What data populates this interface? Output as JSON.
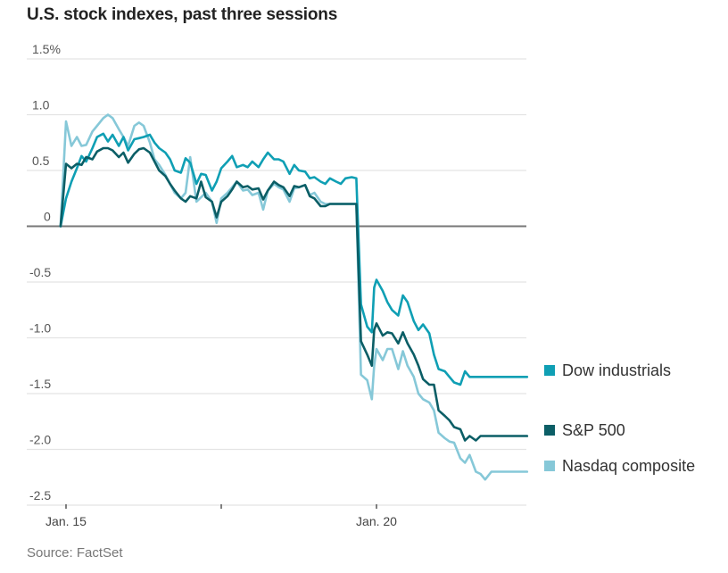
{
  "chart_data": {
    "type": "line",
    "title": "U.S. stock indexes, past three sessions",
    "xlabel": "",
    "ylabel": "",
    "y_unit": "%",
    "ylim": [
      -2.5,
      1.5
    ],
    "yticks": [
      1.5,
      1.0,
      0.5,
      0,
      -0.5,
      -1.0,
      -1.5,
      -2.0,
      -2.5
    ],
    "ytick_labels": [
      "1.5%",
      "1.0",
      "0.5",
      "0",
      "-0.5",
      "-1.0",
      "-1.5",
      "-2.0",
      "-2.5"
    ],
    "x_unit": "sessions since Jan. 15 open",
    "xlim": [
      -0.035,
      2.97
    ],
    "xticks": [
      0,
      1,
      2
    ],
    "xtick_labels": [
      "Jan. 15",
      "",
      "Jan. 20"
    ],
    "grid": true,
    "legend_position": "right",
    "series": [
      {
        "name": "Dow industrials",
        "color": "#0f9fb4",
        "x": [
          -0.035,
          0,
          0.035,
          0.07,
          0.1,
          0.13,
          0.17,
          0.2,
          0.24,
          0.27,
          0.3,
          0.34,
          0.37,
          0.4,
          0.44,
          0.47,
          0.5,
          0.54,
          0.57,
          0.6,
          0.64,
          0.67,
          0.7,
          0.74,
          0.77,
          0.8,
          0.84,
          0.87,
          0.9,
          0.94,
          0.97,
          1.0,
          1.04,
          1.07,
          1.1,
          1.14,
          1.17,
          1.2,
          1.24,
          1.27,
          1.3,
          1.34,
          1.37,
          1.4,
          1.44,
          1.47,
          1.5,
          1.54,
          1.57,
          1.6,
          1.64,
          1.67,
          1.7,
          1.74,
          1.77,
          1.8,
          1.84,
          1.87,
          1.9,
          1.94,
          1.97,
          1.985,
          2.0,
          2.04,
          2.07,
          2.1,
          2.14,
          2.17,
          2.2,
          2.24,
          2.27,
          2.3,
          2.34,
          2.37,
          2.4,
          2.44,
          2.47,
          2.5,
          2.54,
          2.57,
          2.6,
          2.64,
          2.67,
          2.7,
          2.74,
          2.77,
          2.8,
          2.84,
          2.87,
          2.9,
          2.94,
          2.97
        ],
        "values": [
          0,
          0.25,
          0.4,
          0.52,
          0.63,
          0.58,
          0.7,
          0.8,
          0.83,
          0.76,
          0.82,
          0.72,
          0.8,
          0.68,
          0.78,
          0.79,
          0.8,
          0.82,
          0.75,
          0.7,
          0.66,
          0.6,
          0.5,
          0.48,
          0.61,
          0.57,
          0.38,
          0.47,
          0.46,
          0.32,
          0.4,
          0.52,
          0.58,
          0.63,
          0.53,
          0.55,
          0.53,
          0.58,
          0.53,
          0.6,
          0.66,
          0.6,
          0.6,
          0.58,
          0.47,
          0.55,
          0.5,
          0.49,
          0.43,
          0.44,
          0.4,
          0.38,
          0.43,
          0.4,
          0.38,
          0.43,
          0.44,
          0.43,
          -0.7,
          -0.9,
          -0.95,
          -0.55,
          -0.48,
          -0.58,
          -0.68,
          -0.75,
          -0.8,
          -0.62,
          -0.68,
          -0.85,
          -0.93,
          -0.88,
          -0.96,
          -1.15,
          -1.28,
          -1.3,
          -1.35,
          -1.4,
          -1.42,
          -1.3,
          -1.35,
          -1.35,
          -1.35,
          -1.35,
          -1.35,
          -1.35,
          -1.35,
          -1.35,
          -1.35,
          -1.35,
          -1.35,
          -1.35
        ],
        "note": "Closing reading approx -1.35%"
      },
      {
        "name": "S&P 500",
        "color": "#0b5e66",
        "x": [
          -0.035,
          0,
          0.035,
          0.07,
          0.1,
          0.13,
          0.17,
          0.2,
          0.24,
          0.27,
          0.3,
          0.34,
          0.37,
          0.4,
          0.44,
          0.47,
          0.5,
          0.54,
          0.57,
          0.6,
          0.64,
          0.67,
          0.7,
          0.74,
          0.77,
          0.8,
          0.84,
          0.87,
          0.9,
          0.94,
          0.97,
          1.0,
          1.04,
          1.07,
          1.1,
          1.14,
          1.17,
          1.2,
          1.24,
          1.27,
          1.3,
          1.34,
          1.37,
          1.4,
          1.44,
          1.47,
          1.5,
          1.54,
          1.57,
          1.6,
          1.64,
          1.67,
          1.7,
          1.74,
          1.77,
          1.8,
          1.84,
          1.87,
          1.9,
          1.94,
          1.97,
          1.985,
          2.0,
          2.04,
          2.07,
          2.1,
          2.14,
          2.17,
          2.2,
          2.24,
          2.27,
          2.3,
          2.34,
          2.37,
          2.4,
          2.44,
          2.47,
          2.5,
          2.54,
          2.57,
          2.6,
          2.64,
          2.67,
          2.7,
          2.74,
          2.77,
          2.8,
          2.84,
          2.87,
          2.9,
          2.94,
          2.97
        ],
        "values": [
          0,
          0.56,
          0.52,
          0.56,
          0.55,
          0.62,
          0.6,
          0.67,
          0.7,
          0.7,
          0.68,
          0.62,
          0.66,
          0.57,
          0.65,
          0.69,
          0.7,
          0.66,
          0.58,
          0.5,
          0.45,
          0.38,
          0.32,
          0.25,
          0.22,
          0.27,
          0.25,
          0.4,
          0.26,
          0.22,
          0.08,
          0.22,
          0.27,
          0.33,
          0.4,
          0.35,
          0.36,
          0.33,
          0.34,
          0.24,
          0.32,
          0.4,
          0.37,
          0.35,
          0.27,
          0.36,
          0.35,
          0.37,
          0.27,
          0.25,
          0.18,
          0.18,
          0.2,
          0.2,
          0.2,
          0.2,
          0.2,
          0.2,
          -1.03,
          -1.15,
          -1.25,
          -0.93,
          -0.87,
          -0.98,
          -0.95,
          -0.96,
          -1.05,
          -0.95,
          -1.05,
          -1.15,
          -1.25,
          -1.37,
          -1.42,
          -1.42,
          -1.65,
          -1.7,
          -1.74,
          -1.8,
          -1.82,
          -1.92,
          -1.88,
          -1.92,
          -1.88,
          -1.88,
          -1.88,
          -1.88,
          -1.88,
          -1.88,
          -1.88,
          -1.88,
          -1.88,
          -1.88
        ],
        "note": "Closing reading approx -1.88%"
      },
      {
        "name": "Nasdaq composite",
        "color": "#86c8d8",
        "x": [
          -0.035,
          0,
          0.035,
          0.07,
          0.1,
          0.13,
          0.17,
          0.2,
          0.24,
          0.27,
          0.3,
          0.34,
          0.37,
          0.4,
          0.44,
          0.47,
          0.5,
          0.54,
          0.57,
          0.6,
          0.64,
          0.67,
          0.7,
          0.74,
          0.77,
          0.8,
          0.84,
          0.87,
          0.9,
          0.94,
          0.97,
          1.0,
          1.04,
          1.07,
          1.1,
          1.14,
          1.17,
          1.2,
          1.24,
          1.27,
          1.3,
          1.34,
          1.37,
          1.4,
          1.44,
          1.47,
          1.5,
          1.54,
          1.57,
          1.6,
          1.64,
          1.67,
          1.7,
          1.74,
          1.77,
          1.8,
          1.84,
          1.87,
          1.9,
          1.94,
          1.97,
          1.985,
          2.0,
          2.04,
          2.07,
          2.1,
          2.14,
          2.17,
          2.2,
          2.24,
          2.27,
          2.3,
          2.34,
          2.37,
          2.4,
          2.44,
          2.47,
          2.5,
          2.54,
          2.57,
          2.6,
          2.64,
          2.67,
          2.7,
          2.74,
          2.77,
          2.8,
          2.84,
          2.87,
          2.9,
          2.94,
          2.97
        ],
        "values": [
          0,
          0.94,
          0.72,
          0.8,
          0.72,
          0.73,
          0.85,
          0.9,
          0.97,
          1.0,
          0.97,
          0.87,
          0.8,
          0.72,
          0.9,
          0.93,
          0.9,
          0.75,
          0.6,
          0.55,
          0.46,
          0.38,
          0.3,
          0.25,
          0.3,
          0.62,
          0.22,
          0.26,
          0.3,
          0.22,
          0.03,
          0.25,
          0.3,
          0.35,
          0.4,
          0.32,
          0.33,
          0.28,
          0.3,
          0.15,
          0.32,
          0.38,
          0.35,
          0.33,
          0.22,
          0.34,
          0.35,
          0.37,
          0.28,
          0.3,
          0.22,
          0.2,
          0.2,
          0.2,
          0.2,
          0.2,
          0.2,
          0.2,
          -1.33,
          -1.38,
          -1.55,
          -1.25,
          -1.1,
          -1.2,
          -1.1,
          -1.1,
          -1.28,
          -1.12,
          -1.25,
          -1.35,
          -1.5,
          -1.55,
          -1.58,
          -1.65,
          -1.85,
          -1.9,
          -1.93,
          -1.94,
          -2.08,
          -2.12,
          -2.05,
          -2.2,
          -2.22,
          -2.27,
          -2.2,
          -2.2,
          -2.2,
          -2.2,
          -2.2,
          -2.2,
          -2.2,
          -2.2
        ],
        "note": "Closing reading approx -2.20%"
      }
    ],
    "source": "Source: FactSet"
  }
}
